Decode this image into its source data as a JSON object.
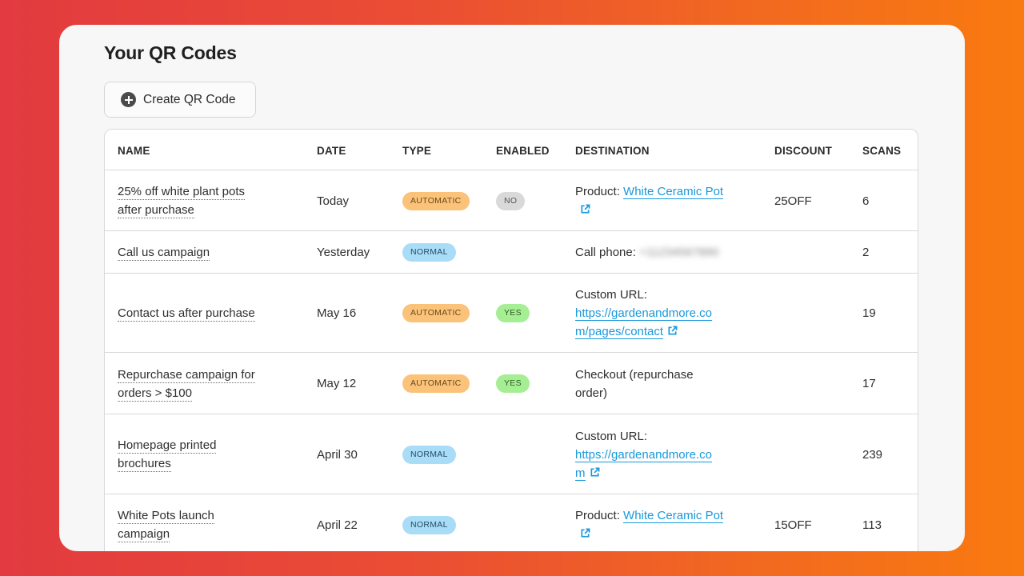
{
  "page": {
    "title": "Your QR Codes",
    "create_label": "Create QR Code"
  },
  "columns": [
    "NAME",
    "DATE",
    "TYPE",
    "ENABLED",
    "DESTINATION",
    "DISCOUNT",
    "SCANS"
  ],
  "rows": [
    {
      "name": [
        "25% off white plant pots",
        "after purchase"
      ],
      "date": "Today",
      "type": "AUTOMATIC",
      "enabled": "NO",
      "dest_prefix": "Product:",
      "dest_link": [
        "White Ceramic Pot"
      ],
      "dest_icon": "external-link-icon",
      "discount": "25OFF",
      "scans": "6"
    },
    {
      "name": [
        "Call us campaign"
      ],
      "date": "Yesterday",
      "type": "NORMAL",
      "enabled": "",
      "dest_prefix": "Call phone:",
      "dest_blur": "+11234567890",
      "discount": "",
      "scans": "2"
    },
    {
      "name": [
        "Contact us after purchase"
      ],
      "date": "May 16",
      "type": "AUTOMATIC",
      "enabled": "YES",
      "dest_prefix": "Custom URL:",
      "dest_link": [
        "https://gardenandmore.co",
        "m/pages/contact"
      ],
      "dest_icon": "external-link-icon",
      "discount": "",
      "scans": "19"
    },
    {
      "name": [
        "Repurchase campaign for",
        "orders > $100"
      ],
      "date": "May 12",
      "type": "AUTOMATIC",
      "enabled": "YES",
      "dest_text": [
        "Checkout (repurchase",
        "order)"
      ],
      "discount": "",
      "scans": "17"
    },
    {
      "name": [
        "Homepage printed",
        "brochures"
      ],
      "date": "April 30",
      "type": "NORMAL",
      "enabled": "",
      "dest_prefix": "Custom URL:",
      "dest_link": [
        "https://gardenandmore.co",
        "m"
      ],
      "dest_icon": "external-link-icon",
      "discount": "",
      "scans": "239"
    },
    {
      "name": [
        "White Pots launch",
        "campaign"
      ],
      "date": "April 22",
      "type": "NORMAL",
      "enabled": "",
      "dest_prefix": "Product:",
      "dest_link": [
        "White Ceramic Pot"
      ],
      "dest_icon": "external-link-icon",
      "discount": "15OFF",
      "scans": "113"
    }
  ],
  "colors": {
    "automatic": "#fbc27a",
    "normal": "#a9dcf7",
    "yes": "#a6ee94",
    "no": "#d9d9d9",
    "link": "#1a98db"
  }
}
